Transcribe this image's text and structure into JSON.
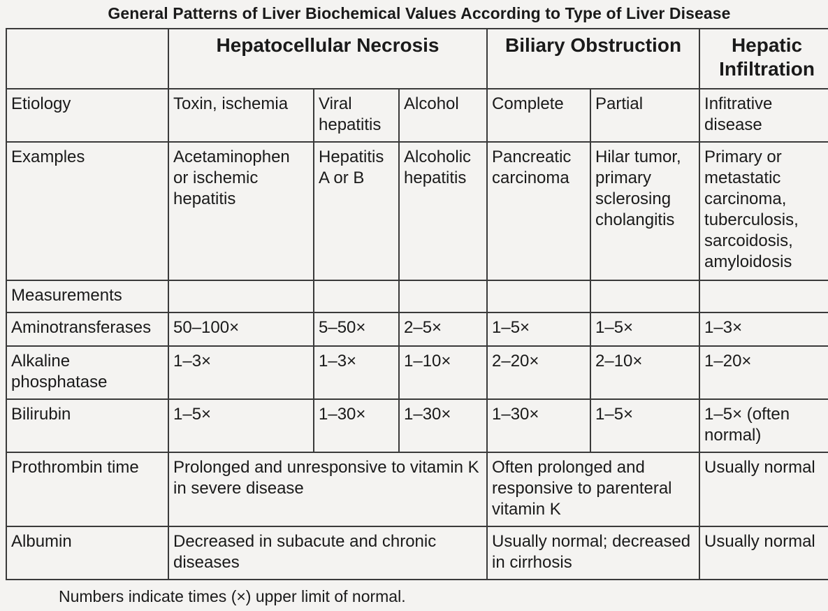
{
  "title": "General Patterns of Liver Biochemical Values According to Type of Liver Disease",
  "groups": {
    "hepatocellular": "Hepatocellular Necrosis",
    "biliary": "Biliary Obstruction",
    "infiltration": "Hepatic Infiltration"
  },
  "rows": {
    "etiology": {
      "label": "Etiology",
      "toxin": "Toxin, ischemia",
      "viral": "Viral hepatitis",
      "alcohol": "Alcohol",
      "complete": "Complete",
      "partial": "Partial",
      "infiltrative": "Infitrative disease"
    },
    "examples": {
      "label": "Examples",
      "toxin": "Acetaminophen or ischemic hepatitis",
      "viral": "Hepatitis A or B",
      "alcohol": "Alcoholic hepatitis",
      "complete": "Pancreatic carcinoma",
      "partial": "Hilar tumor, primary sclerosing cholangitis",
      "infiltrative": "Primary or metastatic carcinoma, tuberculosis, sarcoidosis, amyloidosis"
    },
    "measurements": {
      "label": "Measurements"
    },
    "aminotransferases": {
      "label": "Aminotransferases",
      "toxin": "50–100×",
      "viral": "5–50×",
      "alcohol": "2–5×",
      "complete": "1–5×",
      "partial": "1–5×",
      "infiltrative": "1–3×"
    },
    "alkaline": {
      "label": "Alkaline phosphatase",
      "toxin": "1–3×",
      "viral": "1–3×",
      "alcohol": "1–10×",
      "complete": "2–20×",
      "partial": "2–10×",
      "infiltrative": "1–20×"
    },
    "bilirubin": {
      "label": "Bilirubin",
      "toxin": "1–5×",
      "viral": "1–30×",
      "alcohol": "1–30×",
      "complete": "1–30×",
      "partial": "1–5×",
      "infiltrative": "1–5× (often normal)"
    },
    "prothrombin": {
      "label": "Prothrombin time",
      "hepatocellular": "Prolonged and unresponsive to vitamin K in severe disease",
      "biliary": "Often prolonged and responsive to parenteral vitamin K",
      "infiltrative": "Usually normal"
    },
    "albumin": {
      "label": "Albumin",
      "hepatocellular": "Decreased in subacute and chronic diseases",
      "biliary": "Usually normal; decreased in cirrhosis",
      "infiltrative": "Usually normal"
    }
  },
  "footnote": "Numbers indicate times (×) upper limit of normal."
}
